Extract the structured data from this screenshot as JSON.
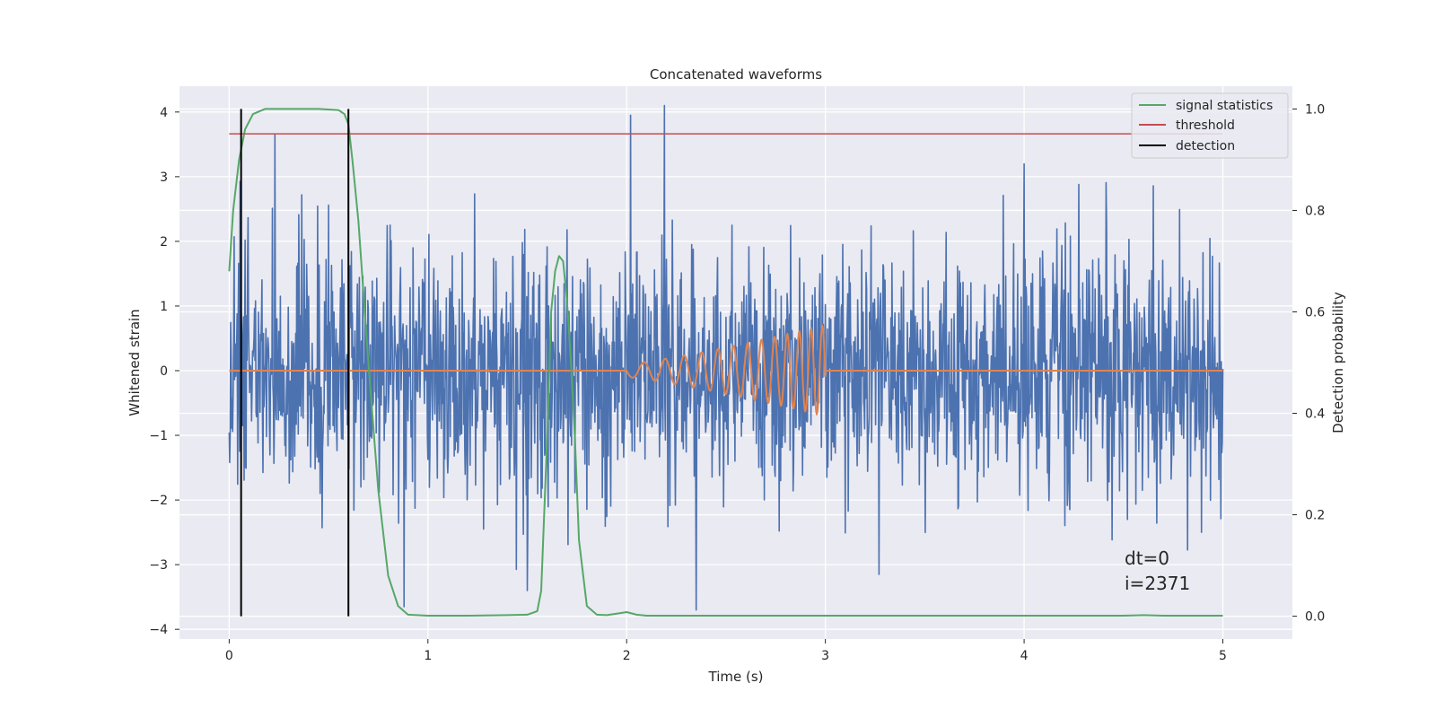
{
  "chart_data": {
    "type": "line",
    "title": "Concatenated waveforms",
    "xlabel": "Time (s)",
    "ylabel": "Whitened strain",
    "ylabel_right": "Detection probability",
    "xlim": [
      -0.25,
      5.35
    ],
    "ylim": [
      -4.15,
      4.4
    ],
    "ylim_right": [
      -0.045,
      1.045
    ],
    "x_ticks": [
      0,
      1,
      2,
      3,
      4,
      5
    ],
    "x_tick_labels": [
      "0",
      "1",
      "2",
      "3",
      "4",
      "5"
    ],
    "y_ticks": [
      -4,
      -3,
      -2,
      -1,
      0,
      1,
      2,
      3,
      4
    ],
    "y_tick_labels": [
      "−4",
      "−3",
      "−2",
      "−1",
      "0",
      "1",
      "2",
      "3",
      "4"
    ],
    "y_right_ticks": [
      0.0,
      0.2,
      0.4,
      0.6,
      0.8,
      1.0
    ],
    "y_right_tick_labels": [
      "0.0",
      "0.2",
      "0.4",
      "0.6",
      "0.8",
      "1.0"
    ],
    "grid": true,
    "legend_position": "top-right",
    "annotation": [
      "dt=0",
      "i=2371"
    ],
    "series": [
      {
        "role": "strain",
        "axis": "left",
        "color": "#4c72b0",
        "description": "whitened noisy strain, amplitude roughly between -3.7 and 4.1",
        "x_range": [
          0,
          5
        ],
        "peaks": [
          [
            0.23,
            3.65
          ],
          [
            2.02,
            3.95
          ],
          [
            2.19,
            4.1
          ],
          [
            2.35,
            -3.7
          ],
          [
            0.88,
            -3.65
          ],
          [
            1.5,
            -3.4
          ],
          [
            3.27,
            -3.15
          ],
          [
            4.0,
            3.2
          ]
        ]
      },
      {
        "role": "signal",
        "axis": "left",
        "color": "#dd8452",
        "description": "injected chirp between 2.0 s and 3.0 s, zero elsewhere",
        "x_range": [
          0,
          5
        ],
        "chirp_start": 2.0,
        "chirp_end": 3.0,
        "chirp_start_amplitude": 0.1,
        "chirp_end_amplitude": 0.7
      },
      {
        "name": "signal statistics",
        "axis": "right",
        "color": "#55a868",
        "x": [
          0.0,
          0.02,
          0.05,
          0.08,
          0.12,
          0.18,
          0.3,
          0.45,
          0.55,
          0.58,
          0.6,
          0.62,
          0.65,
          0.7,
          0.75,
          0.8,
          0.85,
          0.9,
          1.0,
          1.2,
          1.4,
          1.5,
          1.55,
          1.57,
          1.6,
          1.62,
          1.64,
          1.66,
          1.68,
          1.7,
          1.72,
          1.74,
          1.76,
          1.8,
          1.85,
          1.9,
          1.95,
          2.0,
          2.05,
          2.1,
          3.0,
          4.0,
          4.5,
          4.6,
          4.7,
          5.0
        ],
        "y": [
          0.68,
          0.8,
          0.9,
          0.96,
          0.99,
          1.0,
          1.0,
          1.0,
          0.998,
          0.99,
          0.97,
          0.9,
          0.78,
          0.5,
          0.25,
          0.08,
          0.02,
          0.003,
          0.001,
          0.001,
          0.002,
          0.003,
          0.01,
          0.05,
          0.35,
          0.6,
          0.68,
          0.71,
          0.7,
          0.62,
          0.5,
          0.35,
          0.15,
          0.02,
          0.003,
          0.002,
          0.005,
          0.008,
          0.003,
          0.001,
          0.001,
          0.001,
          0.001,
          0.002,
          0.001,
          0.001
        ]
      },
      {
        "name": "threshold",
        "axis": "right",
        "color": "#c44e52",
        "x": [
          0,
          5
        ],
        "y": [
          0.951,
          0.951
        ]
      },
      {
        "name": "detection",
        "axis": "right",
        "color": "#000000",
        "type": "vlines",
        "x": [
          0.06,
          0.6
        ],
        "y_range": [
          0.0,
          1.0
        ]
      }
    ]
  }
}
